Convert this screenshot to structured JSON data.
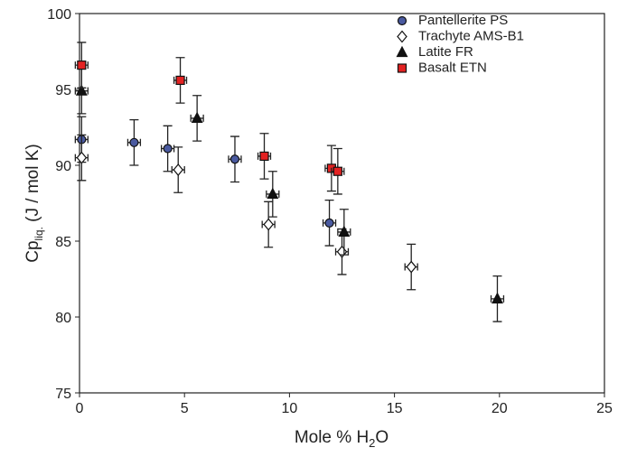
{
  "chart_data": {
    "type": "scatter",
    "xlabel": {
      "main": "Mole % H",
      "sub": "2",
      "rest": "O"
    },
    "ylabel": {
      "main": "Cp",
      "sub": "liq.",
      "rest": " (J / mol K)"
    },
    "xlim": [
      0,
      25
    ],
    "xticks": [
      0,
      5,
      10,
      15,
      20,
      25
    ],
    "ylim": [
      75,
      100
    ],
    "yticks": [
      75,
      80,
      85,
      90,
      95,
      100
    ],
    "legend": "upper right",
    "series": [
      {
        "name": "Pantellerite PS",
        "marker": "circle",
        "color": "#4a5aa0",
        "x": [
          0.1,
          2.6,
          4.2,
          7.4,
          11.9
        ],
        "y": [
          91.7,
          91.5,
          91.1,
          90.4,
          86.2
        ],
        "xerr": [
          0.3,
          0.3,
          0.3,
          0.3,
          0.3
        ],
        "yerr": [
          1.5,
          1.5,
          1.5,
          1.5,
          1.5
        ]
      },
      {
        "name": "Trachyte AMS-B1",
        "marker": "diamond",
        "color": "#ffffff",
        "x": [
          0.1,
          4.7,
          9.0,
          12.5,
          15.8
        ],
        "y": [
          90.5,
          89.7,
          86.1,
          84.3,
          83.3
        ],
        "xerr": [
          0.3,
          0.3,
          0.3,
          0.3,
          0.3
        ],
        "yerr": [
          1.5,
          1.5,
          1.5,
          1.5,
          1.5
        ]
      },
      {
        "name": "Latite FR",
        "marker": "triangle",
        "color": "#111111",
        "x": [
          0.1,
          5.6,
          9.2,
          12.6,
          19.9
        ],
        "y": [
          94.9,
          93.1,
          88.1,
          85.6,
          81.2
        ],
        "xerr": [
          0.3,
          0.3,
          0.3,
          0.3,
          0.3
        ],
        "yerr": [
          1.5,
          1.5,
          1.5,
          1.5,
          1.5
        ]
      },
      {
        "name": "Basalt ETN",
        "marker": "square",
        "color": "#e32222",
        "x": [
          0.1,
          4.8,
          8.8,
          12.0,
          12.3
        ],
        "y": [
          96.6,
          95.6,
          90.6,
          89.8,
          89.6
        ],
        "xerr": [
          0.3,
          0.3,
          0.3,
          0.3,
          0.3
        ],
        "yerr": [
          1.5,
          1.5,
          1.5,
          1.5,
          1.5
        ]
      }
    ]
  }
}
